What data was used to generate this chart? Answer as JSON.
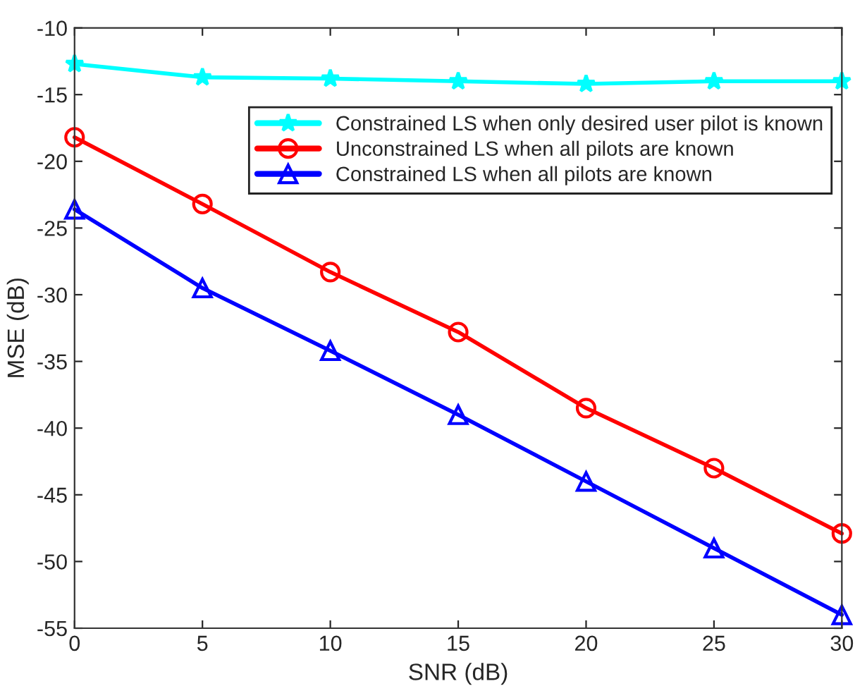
{
  "chart_data": {
    "type": "line",
    "xlabel": "SNR (dB)",
    "ylabel": "MSE (dB)",
    "x": [
      0,
      5,
      10,
      15,
      20,
      25,
      30
    ],
    "series": [
      {
        "name": "Constrained LS when only desired user pilot is known",
        "color": "#00ffff",
        "marker": "star",
        "values": [
          -12.7,
          -13.7,
          -13.8,
          -14.0,
          -14.2,
          -14.0,
          -14.0
        ]
      },
      {
        "name": "Unconstrained LS when all pilots are known",
        "color": "#ff0000",
        "marker": "circle",
        "values": [
          -18.2,
          -23.2,
          -28.3,
          -32.8,
          -38.5,
          -43.0,
          -47.9
        ]
      },
      {
        "name": "Constrained LS when all pilots are known",
        "color": "#0000ff",
        "marker": "triangle",
        "values": [
          -23.6,
          -29.5,
          -34.2,
          -39.0,
          -44.0,
          -49.0,
          -54.0
        ]
      }
    ],
    "xlim": [
      0,
      30
    ],
    "xticks": [
      0,
      5,
      10,
      15,
      20,
      25,
      30
    ],
    "ylim": [
      -55,
      -10
    ],
    "yticks": [
      -55,
      -50,
      -45,
      -40,
      -35,
      -30,
      -25,
      -20,
      -15,
      -10
    ],
    "grid": false,
    "legend": "top right",
    "line_style": "solid"
  }
}
